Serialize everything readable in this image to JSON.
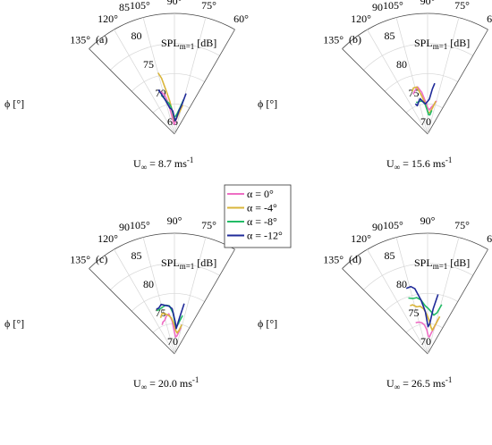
{
  "figure": {
    "phi_label": "ϕ [°]",
    "spl_label": "SPL",
    "spl_sub": "m=1",
    "spl_unit": " [dB]",
    "uinf": "U",
    "uinf_sub": "∞"
  },
  "legend": {
    "entries": [
      {
        "label": "α = 0°",
        "color": "#ee6ec4"
      },
      {
        "label": "α = -4°",
        "color": "#d9b53a"
      },
      {
        "label": "α = -8°",
        "color": "#22bb66"
      },
      {
        "label": "α = -12°",
        "color": "#1f2a99"
      }
    ]
  },
  "chart_data": [
    {
      "type": "polar-line",
      "panel": "(a)",
      "speed": " = 8.7 ms",
      "speed_exp": "-1",
      "theta_ticks": [
        "60°",
        "75°",
        "90°",
        "105°",
        "120°",
        "135°"
      ],
      "r_ticks": [
        "65",
        "70",
        "75",
        "80",
        "85"
      ],
      "r_range": [
        65,
        85
      ],
      "theta_range_deg": [
        60,
        135
      ],
      "series": [
        {
          "name": "α = 0°",
          "color": "#ee6ec4",
          "points": [
            [
              76,
              80.5
            ],
            [
              79,
              81.5
            ],
            [
              83,
              82.5
            ],
            [
              87,
              83.2
            ],
            [
              91,
              83.4
            ],
            [
              95,
              83
            ],
            [
              98,
              82
            ],
            [
              101,
              79.8
            ],
            [
              104,
              78.3
            ],
            [
              107,
              77.8
            ],
            [
              109,
              77.5
            ]
          ]
        },
        {
          "name": "α = -4°",
          "color": "#d9b53a",
          "points": [
            [
              74,
              80
            ],
            [
              77,
              81.2
            ],
            [
              80,
              82
            ],
            [
              84,
              82.6
            ],
            [
              88,
              82.8
            ],
            [
              92,
              82.5
            ],
            [
              95,
              81.3
            ],
            [
              98,
              79.5
            ],
            [
              101,
              77.5
            ],
            [
              103,
              75.5
            ],
            [
              105,
              74.5
            ]
          ]
        },
        {
          "name": "α = -8°",
          "color": "#22bb66",
          "points": [
            [
              75,
              79
            ],
            [
              78,
              80.5
            ],
            [
              82,
              81.5
            ],
            [
              86,
              82
            ],
            [
              90,
              82.2
            ],
            [
              94,
              81.6
            ],
            [
              97,
              80.5
            ],
            [
              100,
              79.8
            ],
            [
              103,
              79.5
            ],
            [
              106,
              78.8
            ],
            [
              109,
              78.2
            ]
          ]
        },
        {
          "name": "α = -12°",
          "color": "#1f2a99",
          "points": [
            [
              74,
              78
            ],
            [
              76,
              80
            ],
            [
              79,
              81
            ],
            [
              83,
              82.4
            ],
            [
              87,
              82.8
            ],
            [
              91,
              82.3
            ],
            [
              94,
              81.2
            ],
            [
              97,
              80.8
            ],
            [
              100,
              80.6
            ],
            [
              104,
              79.5
            ],
            [
              108,
              78
            ],
            [
              110,
              77.2
            ]
          ]
        }
      ]
    },
    {
      "type": "polar-line",
      "panel": "(b)",
      "speed": " = 15.6 ms",
      "speed_exp": "-1",
      "theta_ticks": [
        "60°",
        "75°",
        "90°",
        "105°",
        "120°",
        "135°"
      ],
      "r_ticks": [
        "70",
        "75",
        "80",
        "85",
        "90"
      ],
      "r_range": [
        70,
        90
      ],
      "theta_range_deg": [
        60,
        135
      ],
      "series": [
        {
          "name": "α = 0°",
          "color": "#ee6ec4",
          "points": [
            [
              75,
              84.3
            ],
            [
              78,
              85
            ],
            [
              82,
              85.5
            ],
            [
              86,
              86
            ],
            [
              90,
              85.6
            ],
            [
              94,
              84.5
            ],
            [
              98,
              83
            ],
            [
              102,
              82
            ],
            [
              106,
              82.5
            ],
            [
              110,
              83
            ]
          ]
        },
        {
          "name": "α = -4°",
          "color": "#d9b53a",
          "points": [
            [
              76,
              84.4
            ],
            [
              79,
              85.5
            ],
            [
              83,
              86.3
            ],
            [
              87,
              86.5
            ],
            [
              91,
              86
            ],
            [
              95,
              84.8
            ],
            [
              99,
              83.5
            ],
            [
              103,
              82
            ],
            [
              107,
              82
            ],
            [
              110,
              82.5
            ]
          ]
        },
        {
          "name": "α = -8°",
          "color": "#22bb66",
          "points": [
            [
              80,
              86
            ],
            [
              83,
              86.8
            ],
            [
              87,
              86.8
            ],
            [
              91,
              86
            ],
            [
              95,
              85
            ],
            [
              99,
              84.5
            ],
            [
              103,
              84.4
            ],
            [
              107,
              84.5
            ],
            [
              110,
              84.4
            ]
          ]
        },
        {
          "name": "α = -12°",
          "color": "#1f2a99",
          "points": [
            [
              82,
              81.5
            ],
            [
              84,
              82.5
            ],
            [
              87,
              84.2
            ],
            [
              90,
              84.6
            ],
            [
              94,
              85
            ],
            [
              98,
              84.6
            ],
            [
              102,
              84
            ],
            [
              106,
              84.5
            ],
            [
              110,
              85
            ],
            [
              112,
              84.6
            ]
          ]
        }
      ]
    },
    {
      "type": "polar-line",
      "panel": "(c)",
      "speed": " = 20.0 ms",
      "speed_exp": "-1",
      "theta_ticks": [
        "60°",
        "75°",
        "90°",
        "105°",
        "120°",
        "135°"
      ],
      "r_ticks": [
        "70",
        "75",
        "80",
        "85",
        "90"
      ],
      "r_range": [
        70,
        90
      ],
      "theta_range_deg": [
        60,
        135
      ],
      "series": [
        {
          "name": "α = 0°",
          "color": "#ee6ec4",
          "points": [
            [
              76,
              85.5
            ],
            [
              79,
              86.4
            ],
            [
              82,
              87
            ],
            [
              86,
              87.2
            ],
            [
              90,
              86.4
            ],
            [
              94,
              84.5
            ],
            [
              98,
              83.3
            ],
            [
              102,
              83.6
            ],
            [
              106,
              84.2
            ],
            [
              110,
              84.4
            ],
            [
              113,
              84.8
            ]
          ]
        },
        {
          "name": "α = -4°",
          "color": "#d9b53a",
          "points": [
            [
              76,
              85
            ],
            [
              79,
              86
            ],
            [
              83,
              86.5
            ],
            [
              87,
              86.1
            ],
            [
              91,
              85
            ],
            [
              95,
              84
            ],
            [
              99,
              83.5
            ],
            [
              103,
              83.2
            ],
            [
              107,
              83
            ],
            [
              111,
              83.6
            ]
          ]
        },
        {
          "name": "α = -8°",
          "color": "#22bb66",
          "points": [
            [
              78,
              83.5
            ],
            [
              81,
              84.5
            ],
            [
              85,
              85.5
            ],
            [
              88,
              85.2
            ],
            [
              92,
              83.2
            ],
            [
              96,
              82
            ],
            [
              100,
              81.8
            ],
            [
              104,
              82
            ],
            [
              108,
              82.2
            ],
            [
              112,
              82.3
            ]
          ]
        },
        {
          "name": "α = -12°",
          "color": "#1f2a99",
          "points": [
            [
              79,
              81.5
            ],
            [
              82,
              84
            ],
            [
              86,
              85.8
            ],
            [
              89,
              84.5
            ],
            [
              93,
              82.5
            ],
            [
              97,
              82
            ],
            [
              101,
              81.8
            ],
            [
              105,
              81.5
            ],
            [
              109,
              82
            ],
            [
              112,
              82
            ]
          ]
        }
      ]
    },
    {
      "type": "polar-line",
      "panel": "(d)",
      "speed": " = 26.5 ms",
      "speed_exp": "-1",
      "theta_ticks": [
        "60°",
        "75°",
        "90°",
        "105°",
        "120°",
        "135°"
      ],
      "r_ticks": [
        "70",
        "75",
        "80",
        "85",
        "90"
      ],
      "r_range": [
        70,
        90
      ],
      "theta_range_deg": [
        60,
        135
      ],
      "series": [
        {
          "name": "α = 0°",
          "color": "#ee6ec4",
          "points": [
            [
              73,
              84
            ],
            [
              76,
              85.5
            ],
            [
              80,
              86.5
            ],
            [
              84,
              87.2
            ],
            [
              88,
              87
            ],
            [
              92,
              86
            ],
            [
              96,
              85.2
            ],
            [
              100,
              84.8
            ],
            [
              104,
              84.6
            ],
            [
              108,
              84.5
            ],
            [
              111,
              84.5
            ]
          ]
        },
        {
          "name": "α = -4°",
          "color": "#d9b53a",
          "points": [
            [
              72,
              83.5
            ],
            [
              75,
              85
            ],
            [
              79,
              86
            ],
            [
              83,
              85.5
            ],
            [
              87,
              84.5
            ],
            [
              91,
              83.5
            ],
            [
              95,
              82.5
            ],
            [
              99,
              82
            ],
            [
              103,
              82
            ],
            [
              107,
              81.5
            ],
            [
              110,
              81.5
            ]
          ]
        },
        {
          "name": "α = -8°",
          "color": "#22bb66",
          "points": [
            [
              74,
              81.5
            ],
            [
              77,
              83
            ],
            [
              81,
              83.5
            ],
            [
              85,
              83
            ],
            [
              89,
              82.5
            ],
            [
              93,
              82
            ],
            [
              97,
              81
            ],
            [
              101,
              80.5
            ],
            [
              105,
              80.5
            ],
            [
              109,
              80.2
            ]
          ]
        },
        {
          "name": "α = -12°",
          "color": "#1f2a99",
          "points": [
            [
              80,
              80
            ],
            [
              83,
              82.5
            ],
            [
              86,
              85
            ],
            [
              89,
              85.5
            ],
            [
              93,
              83
            ],
            [
              97,
              81
            ],
            [
              101,
              79
            ],
            [
              104,
              78.5
            ],
            [
              108,
              78.6
            ]
          ]
        }
      ]
    }
  ]
}
